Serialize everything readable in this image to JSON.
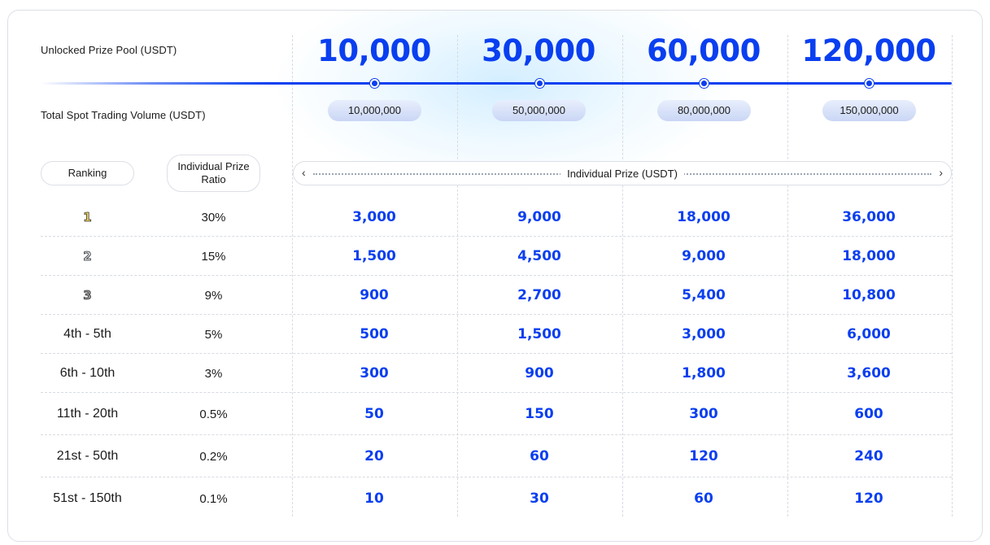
{
  "header": {
    "pool_label": "Unlocked Prize Pool (USDT)",
    "volume_label": "Total Spot Trading Volume (USDT)"
  },
  "tiers": [
    {
      "pool": "10,000",
      "volume": "10,000,000"
    },
    {
      "pool": "30,000",
      "volume": "50,000,000"
    },
    {
      "pool": "60,000",
      "volume": "80,000,000"
    },
    {
      "pool": "120,000",
      "volume": "150,000,000"
    }
  ],
  "table": {
    "rank_header": "Ranking",
    "ratio_header": "Individual Prize Ratio",
    "prize_header": "Individual Prize (USDT)",
    "arrow_left": "‹",
    "arrow_right": "›",
    "rows": [
      {
        "rank": "1",
        "ratio": "30%",
        "values": [
          "3,000",
          "9,000",
          "18,000",
          "36,000"
        ]
      },
      {
        "rank": "2",
        "ratio": "15%",
        "values": [
          "1,500",
          "4,500",
          "9,000",
          "18,000"
        ]
      },
      {
        "rank": "3",
        "ratio": "9%",
        "values": [
          "900",
          "2,700",
          "5,400",
          "10,800"
        ]
      },
      {
        "rank": "4th - 5th",
        "ratio": "5%",
        "values": [
          "500",
          "1,500",
          "3,000",
          "6,000"
        ]
      },
      {
        "rank": "6th - 10th",
        "ratio": "3%",
        "values": [
          "300",
          "900",
          "1,800",
          "3,600"
        ]
      },
      {
        "rank": "11th - 20th",
        "ratio": "0.5%",
        "values": [
          "50",
          "150",
          "300",
          "600"
        ]
      },
      {
        "rank": "21st - 50th",
        "ratio": "0.2%",
        "values": [
          "20",
          "60",
          "120",
          "240"
        ]
      },
      {
        "rank": "51st - 150th",
        "ratio": "0.1%",
        "values": [
          "10",
          "30",
          "60",
          "120"
        ]
      }
    ]
  },
  "colors": {
    "accent": "#0a3ff0",
    "gold_medal": "#f3d35a",
    "silver_medal": "#d7dbe2",
    "bronze_medal": "#9a9a9a"
  }
}
